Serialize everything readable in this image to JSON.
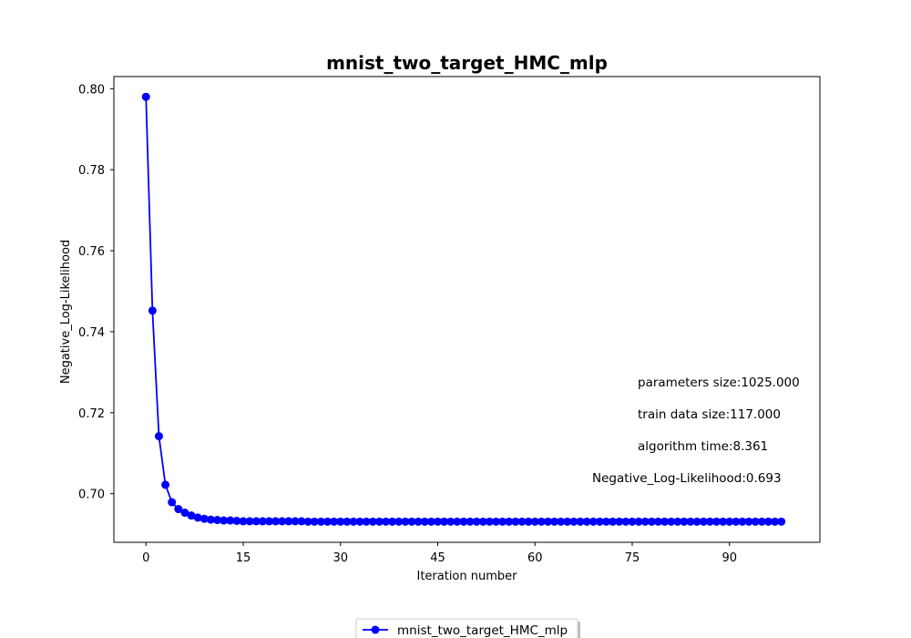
{
  "chart_data": {
    "type": "line",
    "title": "mnist_two_target_HMC_mlp",
    "xlabel": "Iteration number",
    "ylabel": "Negative_Log-Likelihood",
    "xlim": [
      -4.95,
      103.95
    ],
    "ylim": [
      0.688,
      0.803
    ],
    "xticks": [
      0,
      15,
      30,
      45,
      60,
      75,
      90
    ],
    "xtick_labels": [
      "0",
      "15",
      "30",
      "45",
      "60",
      "75",
      "90"
    ],
    "yticks": [
      0.7,
      0.72,
      0.74,
      0.76,
      0.78,
      0.8
    ],
    "ytick_labels": [
      "0.70",
      "0.72",
      "0.74",
      "0.76",
      "0.78",
      "0.80"
    ],
    "grid": false,
    "legend_position": "bottom-center, outside plot",
    "series": [
      {
        "name": "mnist_two_target_HMC_mlp",
        "color": "#0000ff",
        "marker": "circle",
        "x": [
          0,
          1,
          2,
          3,
          4,
          5,
          6,
          7,
          8,
          9,
          10,
          11,
          12,
          13,
          14,
          15,
          16,
          17,
          18,
          19,
          20,
          21,
          22,
          23,
          24,
          25,
          26,
          27,
          28,
          29,
          30,
          31,
          32,
          33,
          34,
          35,
          36,
          37,
          38,
          39,
          40,
          41,
          42,
          43,
          44,
          45,
          46,
          47,
          48,
          49,
          50,
          51,
          52,
          53,
          54,
          55,
          56,
          57,
          58,
          59,
          60,
          61,
          62,
          63,
          64,
          65,
          66,
          67,
          68,
          69,
          70,
          71,
          72,
          73,
          74,
          75,
          76,
          77,
          78,
          79,
          80,
          81,
          82,
          83,
          84,
          85,
          86,
          87,
          88,
          89,
          90,
          91,
          92,
          93,
          94,
          95,
          96,
          97,
          98
        ],
        "values": [
          0.798,
          0.7452,
          0.7142,
          0.7022,
          0.6979,
          0.6962,
          0.6953,
          0.6946,
          0.6941,
          0.6938,
          0.6936,
          0.6935,
          0.6934,
          0.6934,
          0.6933,
          0.6932,
          0.6932,
          0.6932,
          0.6932,
          0.6932,
          0.6932,
          0.6932,
          0.6932,
          0.6932,
          0.6932,
          0.6931,
          0.6931,
          0.6931,
          0.6931,
          0.6931,
          0.6931,
          0.6931,
          0.6931,
          0.6931,
          0.6931,
          0.6931,
          0.6931,
          0.6931,
          0.6931,
          0.6931,
          0.6931,
          0.6931,
          0.6931,
          0.6931,
          0.6931,
          0.6931,
          0.6931,
          0.6931,
          0.6931,
          0.6931,
          0.6931,
          0.6931,
          0.6931,
          0.6931,
          0.6931,
          0.6931,
          0.6931,
          0.6931,
          0.6931,
          0.6931,
          0.6931,
          0.6931,
          0.6931,
          0.6931,
          0.6931,
          0.6931,
          0.6931,
          0.6931,
          0.6931,
          0.6931,
          0.6931,
          0.6931,
          0.6931,
          0.6931,
          0.6931,
          0.6931,
          0.6931,
          0.6931,
          0.6931,
          0.6931,
          0.6931,
          0.6931,
          0.6931,
          0.6931,
          0.6931,
          0.6931,
          0.6931,
          0.6931,
          0.6931,
          0.6931,
          0.6931,
          0.6931,
          0.6931,
          0.6931,
          0.6931,
          0.6931,
          0.6931,
          0.6931,
          0.6931
        ]
      }
    ],
    "annotations": [
      "parameters size:1025.000",
      "train data size:117.000",
      "algorithm time:8.361",
      "Negative_Log-Likelihood:0.693"
    ]
  }
}
